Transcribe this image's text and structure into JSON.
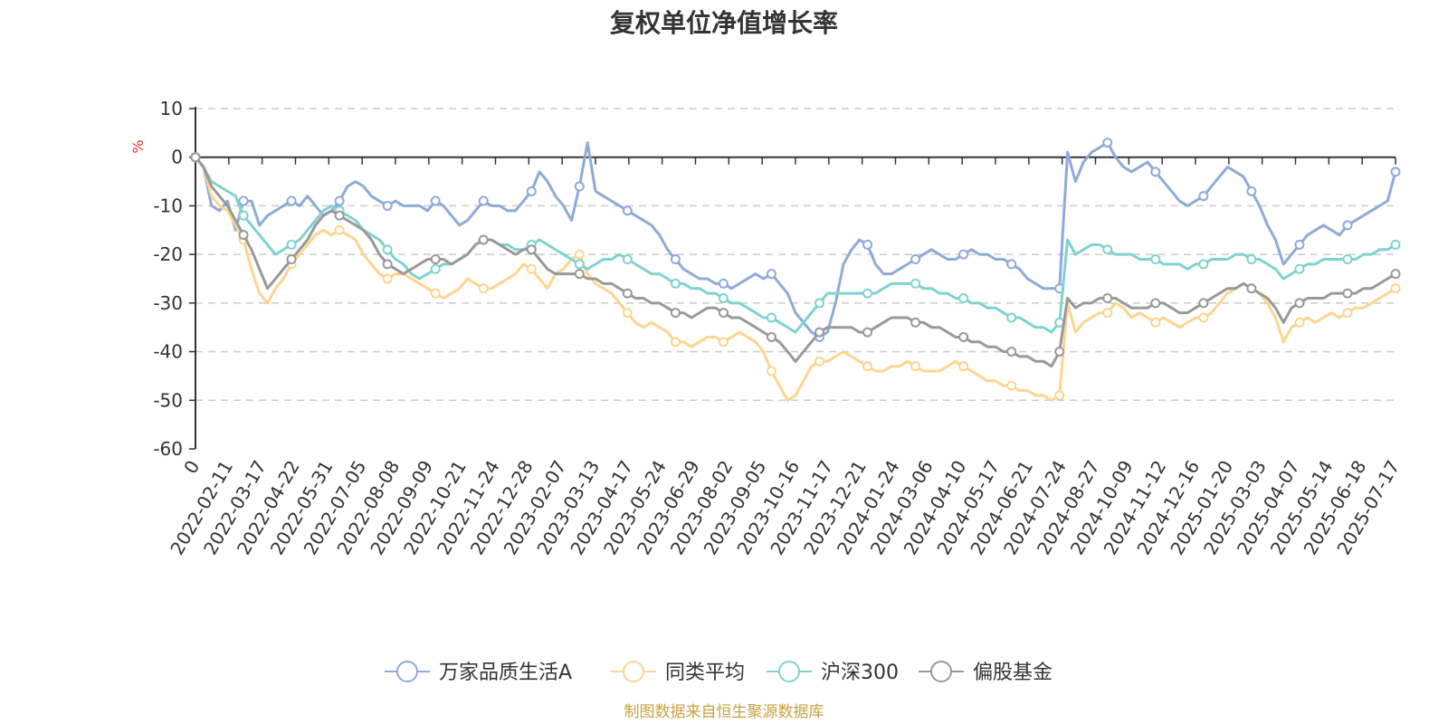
{
  "chart_data": {
    "type": "line",
    "title": "复权单位净值增长率",
    "ylabel": "%",
    "ylim": [
      -60,
      10
    ],
    "yticks": [
      10,
      0,
      -10,
      -20,
      -30,
      -40,
      -50,
      -60
    ],
    "x_tick_labels": [
      "0",
      "2022-02-11",
      "2022-03-17",
      "2022-04-22",
      "2022-05-31",
      "2022-07-05",
      "2022-08-08",
      "2022-09-09",
      "2022-10-21",
      "2022-11-24",
      "2022-12-28",
      "2023-02-07",
      "2023-03-13",
      "2023-04-17",
      "2023-05-24",
      "2023-06-29",
      "2023-08-02",
      "2023-09-05",
      "2023-10-16",
      "2023-11-17",
      "2023-12-21",
      "2024-01-24",
      "2024-03-06",
      "2024-04-10",
      "2024-05-17",
      "2024-06-21",
      "2024-07-24",
      "2024-08-27",
      "2024-10-09",
      "2024-11-12",
      "2024-12-16",
      "2025-01-20",
      "2025-03-03",
      "2025-04-07",
      "2025-05-14",
      "2025-06-18",
      "2025-07-17"
    ],
    "grid": "horizontal dashed",
    "legend_position": "bottom-center",
    "series": [
      {
        "name": "万家品质生活A",
        "color": "#8eaadb",
        "values": [
          0,
          -2,
          -10,
          -11,
          -9,
          -15,
          -9,
          -9,
          -14,
          -12,
          -11,
          -10,
          -9,
          -10,
          -8,
          -10,
          -12,
          -11,
          -9,
          -6,
          -5,
          -6,
          -8,
          -9,
          -10,
          -9,
          -10,
          -10,
          -10,
          -11,
          -9,
          -10,
          -12,
          -14,
          -13,
          -11,
          -9,
          -10,
          -10,
          -11,
          -11,
          -9,
          -7,
          -3,
          -5,
          -8,
          -10,
          -13,
          -6,
          3,
          -7,
          -8,
          -9,
          -10,
          -11,
          -12,
          -13,
          -14,
          -16,
          -19,
          -21,
          -23,
          -24,
          -25,
          -25,
          -26,
          -26,
          -27,
          -26,
          -25,
          -24,
          -25,
          -24,
          -26,
          -28,
          -32,
          -34,
          -36,
          -37,
          -36,
          -30,
          -22,
          -19,
          -17,
          -18,
          -22,
          -24,
          -24,
          -23,
          -22,
          -21,
          -20,
          -19,
          -20,
          -21,
          -21,
          -20,
          -19,
          -20,
          -20,
          -21,
          -21,
          -22,
          -23,
          -25,
          -26,
          -27,
          -27,
          -27,
          1,
          -5,
          -1,
          1,
          2,
          3,
          0,
          -2,
          -3,
          -2,
          -1,
          -3,
          -5,
          -7,
          -9,
          -10,
          -9,
          -8,
          -6,
          -4,
          -2,
          -3,
          -4,
          -7,
          -10,
          -14,
          -17,
          -22,
          -20,
          -18,
          -16,
          -15,
          -14,
          -15,
          -16,
          -14,
          -13,
          -12,
          -11,
          -10,
          -9,
          -3
        ]
      },
      {
        "name": "同类平均",
        "color": "#fcd58f",
        "values": [
          0,
          -2,
          -8,
          -10,
          -11,
          -14,
          -17,
          -23,
          -28,
          -30,
          -27,
          -25,
          -22,
          -20,
          -18,
          -16,
          -15,
          -16,
          -15,
          -16,
          -17,
          -20,
          -22,
          -24,
          -25,
          -24,
          -24,
          -25,
          -26,
          -27,
          -28,
          -29,
          -28,
          -27,
          -25,
          -26,
          -27,
          -27,
          -26,
          -25,
          -24,
          -22,
          -23,
          -25,
          -27,
          -24,
          -23,
          -21,
          -20,
          -24,
          -26,
          -27,
          -28,
          -30,
          -32,
          -34,
          -35,
          -34,
          -35,
          -36,
          -38,
          -38,
          -39,
          -38,
          -37,
          -37,
          -38,
          -37,
          -36,
          -37,
          -38,
          -40,
          -44,
          -47,
          -50,
          -49,
          -46,
          -43,
          -42,
          -42,
          -41,
          -40,
          -41,
          -42,
          -43,
          -44,
          -44,
          -43,
          -43,
          -42,
          -43,
          -44,
          -44,
          -44,
          -43,
          -42,
          -43,
          -44,
          -45,
          -46,
          -46,
          -47,
          -47,
          -48,
          -48,
          -49,
          -49,
          -50,
          -49,
          -30,
          -36,
          -34,
          -33,
          -32,
          -32,
          -30,
          -31,
          -33,
          -32,
          -33,
          -34,
          -33,
          -34,
          -35,
          -34,
          -33,
          -33,
          -32,
          -30,
          -28,
          -27,
          -26,
          -27,
          -28,
          -30,
          -33,
          -38,
          -35,
          -34,
          -33,
          -34,
          -33,
          -32,
          -33,
          -32,
          -31,
          -31,
          -30,
          -29,
          -28,
          -27
        ]
      },
      {
        "name": "沪深300",
        "color": "#7fd2d2",
        "values": [
          0,
          -2,
          -5,
          -6,
          -7,
          -8,
          -12,
          -14,
          -16,
          -18,
          -20,
          -19,
          -18,
          -17,
          -15,
          -13,
          -11,
          -10,
          -11,
          -12,
          -13,
          -15,
          -16,
          -17,
          -19,
          -21,
          -22,
          -24,
          -25,
          -24,
          -23,
          -22,
          -22,
          -21,
          -20,
          -18,
          -17,
          -17,
          -18,
          -18,
          -19,
          -19,
          -18,
          -17,
          -18,
          -19,
          -20,
          -21,
          -22,
          -23,
          -22,
          -21,
          -21,
          -20,
          -21,
          -22,
          -23,
          -24,
          -24,
          -25,
          -26,
          -26,
          -27,
          -27,
          -28,
          -28,
          -29,
          -30,
          -30,
          -31,
          -32,
          -33,
          -33,
          -34,
          -35,
          -36,
          -34,
          -32,
          -30,
          -28,
          -28,
          -28,
          -28,
          -28,
          -28,
          -28,
          -27,
          -26,
          -26,
          -26,
          -26,
          -27,
          -27,
          -28,
          -28,
          -29,
          -29,
          -30,
          -30,
          -31,
          -31,
          -32,
          -33,
          -33,
          -34,
          -35,
          -35,
          -36,
          -34,
          -17,
          -20,
          -19,
          -18,
          -18,
          -19,
          -20,
          -20,
          -20,
          -21,
          -21,
          -21,
          -22,
          -22,
          -22,
          -23,
          -22,
          -22,
          -21,
          -21,
          -21,
          -20,
          -20,
          -21,
          -21,
          -22,
          -23,
          -25,
          -24,
          -23,
          -22,
          -22,
          -21,
          -21,
          -21,
          -21,
          -21,
          -20,
          -20,
          -19,
          -19,
          -18
        ]
      },
      {
        "name": "偏股基金",
        "color": "#999999",
        "values": [
          0,
          -2,
          -6,
          -8,
          -10,
          -13,
          -16,
          -19,
          -23,
          -27,
          -25,
          -23,
          -21,
          -19,
          -17,
          -14,
          -12,
          -11,
          -12,
          -13,
          -14,
          -15,
          -17,
          -20,
          -22,
          -23,
          -24,
          -23,
          -22,
          -21,
          -21,
          -21,
          -22,
          -21,
          -20,
          -18,
          -17,
          -17,
          -18,
          -19,
          -20,
          -19,
          -19,
          -21,
          -23,
          -24,
          -24,
          -24,
          -24,
          -25,
          -25,
          -26,
          -26,
          -27,
          -28,
          -29,
          -29,
          -30,
          -30,
          -31,
          -32,
          -32,
          -33,
          -32,
          -31,
          -31,
          -32,
          -33,
          -33,
          -34,
          -35,
          -36,
          -37,
          -38,
          -40,
          -42,
          -40,
          -38,
          -36,
          -35,
          -35,
          -35,
          -35,
          -36,
          -36,
          -35,
          -34,
          -33,
          -33,
          -33,
          -34,
          -34,
          -35,
          -35,
          -36,
          -37,
          -37,
          -38,
          -38,
          -39,
          -39,
          -40,
          -40,
          -41,
          -41,
          -42,
          -42,
          -43,
          -40,
          -29,
          -31,
          -30,
          -30,
          -29,
          -29,
          -29,
          -30,
          -31,
          -31,
          -31,
          -30,
          -30,
          -31,
          -32,
          -32,
          -31,
          -30,
          -29,
          -28,
          -27,
          -27,
          -26,
          -27,
          -28,
          -29,
          -31,
          -34,
          -31,
          -30,
          -29,
          -29,
          -29,
          -28,
          -28,
          -28,
          -28,
          -27,
          -27,
          -26,
          -25,
          -24
        ]
      }
    ],
    "source": "制图数据来自恒生聚源数据库"
  }
}
